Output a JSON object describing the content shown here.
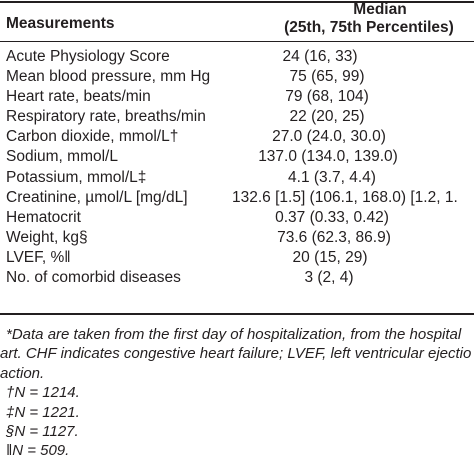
{
  "table": {
    "header": {
      "col1": "Measurements",
      "col2_line1": "Median",
      "col2_line2": "(25th, 75th Percentiles)"
    },
    "rows": [
      {
        "label": "Acute Physiology Score",
        "value": "24 (16, 33)"
      },
      {
        "label": "Mean blood pressure, mm Hg",
        "value": "75 (65, 99)"
      },
      {
        "label": "Heart rate, beats/min",
        "value": "79 (68, 104)"
      },
      {
        "label": "Respiratory rate, breaths/min",
        "value": "22 (20, 25)"
      },
      {
        "label": "Carbon dioxide, mmol/L†",
        "value": "27.0 (24.0, 30.0)"
      },
      {
        "label": "Sodium, mmol/L",
        "value": "137.0 (134.0, 139.0)"
      },
      {
        "label": "Potassium, mmol/L‡",
        "value": "4.1 (3.7, 4.4)"
      },
      {
        "label": "Creatinine, µmol/L [mg/dL]",
        "value": "132.6 [1.5] (106.1, 168.0) [1.2, 1."
      },
      {
        "label": "Hematocrit",
        "value": "0.37 (0.33, 0.42)"
      },
      {
        "label": "Weight, kg§",
        "value": "73.6 (62.3, 86.9)"
      },
      {
        "label": "LVEF, %‖",
        "value": "20 (15, 29)"
      },
      {
        "label": "No. of comorbid diseases",
        "value": "3 (2, 4)"
      }
    ]
  },
  "footnotes": [
    "*Data are taken from the first day of hospitalization, from the hospital",
    "art. CHF indicates congestive heart failure; LVEF, left ventricular ejectio",
    "action.",
    "†N = 1214.",
    "‡N = 1221.",
    "§N = 1127.",
    "‖N = 509."
  ]
}
